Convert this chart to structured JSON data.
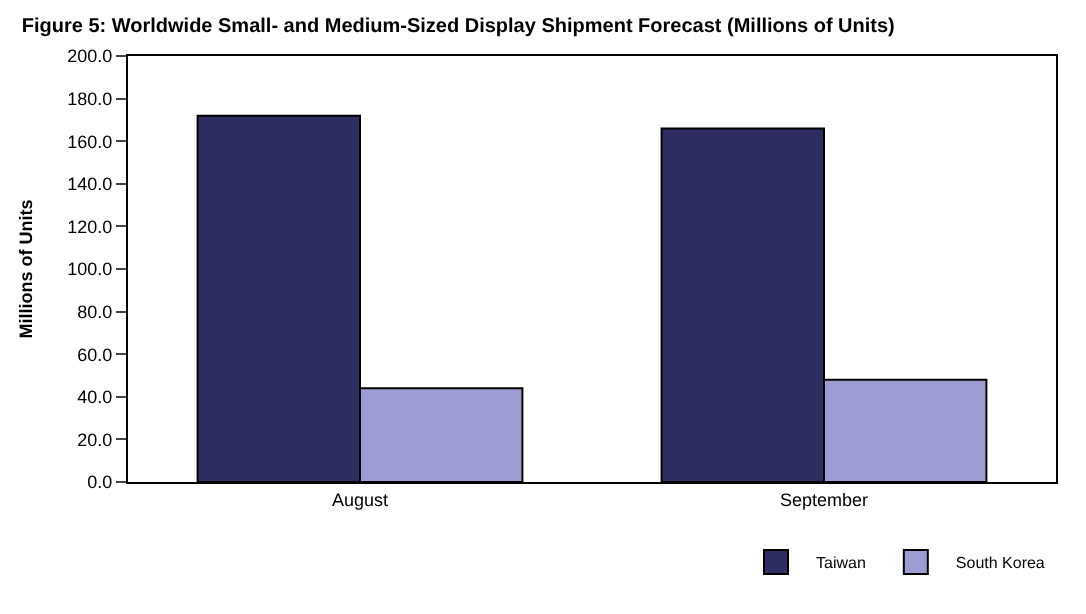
{
  "chart_data": {
    "type": "bar",
    "title": "Figure 5: Worldwide Small- and Medium-Sized Display Shipment Forecast (Millions of Units)",
    "ylabel": "Millions of Units",
    "categories": [
      "August",
      "September"
    ],
    "series": [
      {
        "name": "Taiwan",
        "color": "#2e2d5f",
        "values": [
          172,
          166
        ]
      },
      {
        "name": "South Korea",
        "color": "#9d9dd4",
        "values": [
          44,
          48
        ]
      }
    ],
    "ylim": [
      0,
      200
    ],
    "yticks": [
      {
        "value": 0,
        "label": "0.0"
      },
      {
        "value": 20,
        "label": "20.0"
      },
      {
        "value": 40,
        "label": "40.0"
      },
      {
        "value": 60,
        "label": "60.0"
      },
      {
        "value": 80,
        "label": "80.0"
      },
      {
        "value": 100,
        "label": "100.0"
      },
      {
        "value": 120,
        "label": "120.0"
      },
      {
        "value": 140,
        "label": "140.0"
      },
      {
        "value": 160,
        "label": "160.0"
      },
      {
        "value": 180,
        "label": "180.0"
      },
      {
        "value": 200,
        "label": "200.0"
      }
    ],
    "legend": "bottom right"
  }
}
